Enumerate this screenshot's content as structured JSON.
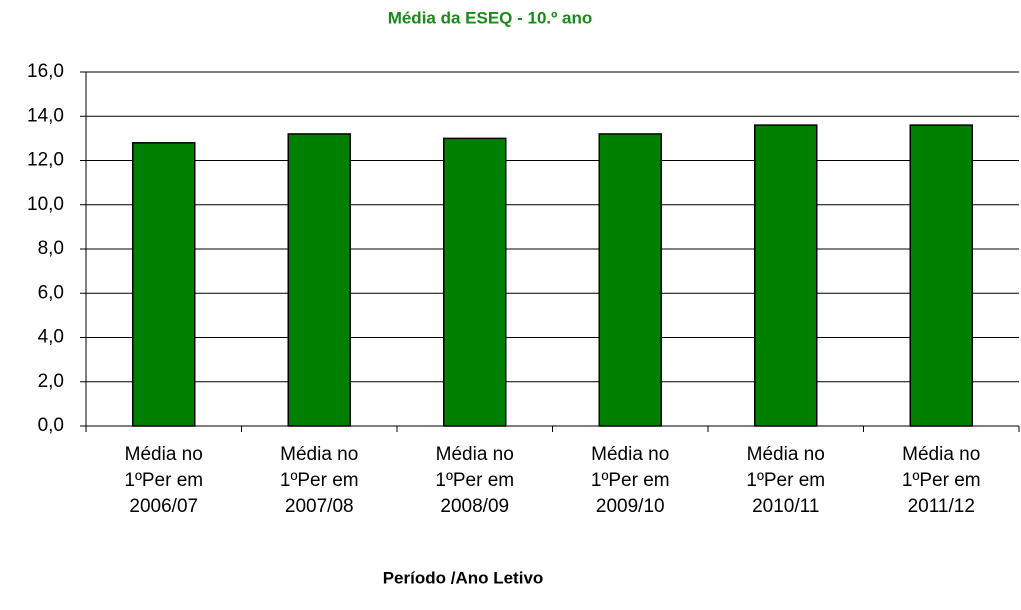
{
  "chart_data": {
    "type": "bar",
    "title": "Média da ESEQ - 10.º ano",
    "x_label": "Período /Ano Letivo",
    "categories": [
      "Média no\n1ºPer em\n2006/07",
      "Média no\n1ºPer em\n2007/08",
      "Média no\n1ºPer em\n2008/09",
      "Média no\n1ºPer em\n2009/10",
      "Média no\n1ºPer em\n2010/11",
      "Média no\n1ºPer em\n2011/12"
    ],
    "values": [
      12.8,
      13.2,
      13.0,
      13.2,
      13.6,
      13.6
    ],
    "color": "#008000",
    "ylim": [
      0,
      16
    ],
    "yticks": [
      {
        "value": 0,
        "label": "0,0"
      },
      {
        "value": 2,
        "label": "2,0"
      },
      {
        "value": 4,
        "label": "4,0"
      },
      {
        "value": 6,
        "label": "6,0"
      },
      {
        "value": 8,
        "label": "8,0"
      },
      {
        "value": 10,
        "label": "10,0"
      },
      {
        "value": 12,
        "label": "12,0"
      },
      {
        "value": 14,
        "label": "14,0"
      },
      {
        "value": 16,
        "label": "16,0"
      }
    ],
    "grid": true
  }
}
